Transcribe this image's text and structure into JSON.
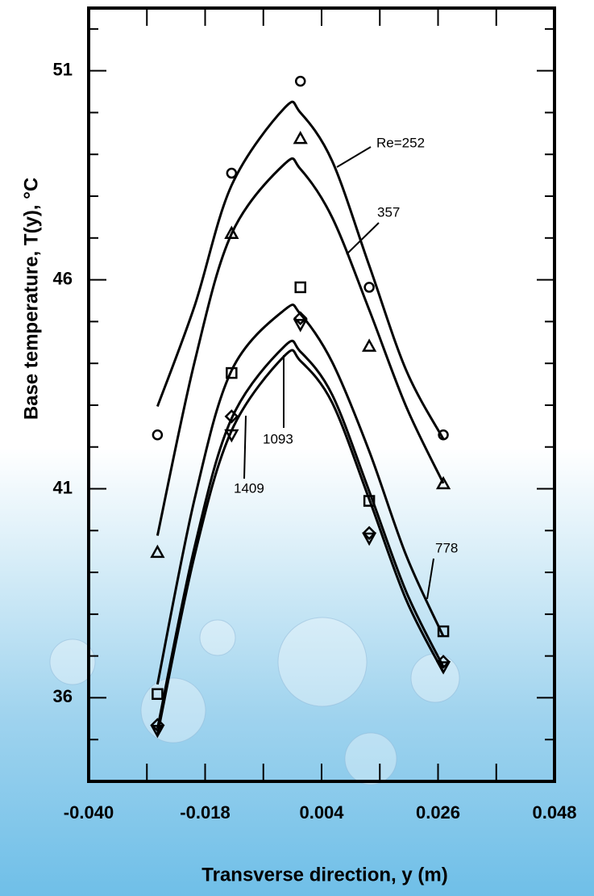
{
  "chart_data": {
    "type": "scatter",
    "x_label": "Transverse direction, y (m)",
    "y_label": "Base temperature, T(y), °C",
    "x": [
      -0.027,
      -0.013,
      0,
      0.013,
      0.027
    ],
    "curve_x": [
      -0.027,
      -0.02,
      -0.013,
      -0.003,
      0,
      0.006,
      0.013,
      0.02,
      0.027
    ],
    "series": [
      {
        "name": "Re=252",
        "marker": "circle",
        "color": "#000000",
        "values": [
          42.29,
          48.55,
          50.75,
          45.82,
          42.29
        ],
        "curve_values": [
          42.97,
          45.37,
          48.26,
          50.11,
          50.0,
          48.84,
          46.34,
          43.83,
          42.19
        ]
      },
      {
        "name": "357",
        "marker": "triangle",
        "color": "#000000",
        "values": [
          39.48,
          47.11,
          49.38,
          44.41,
          41.12
        ],
        "curve_values": [
          39.88,
          44.03,
          47.1,
          48.77,
          48.65,
          47.49,
          45.28,
          42.96,
          41.13
        ]
      },
      {
        "name": "778",
        "marker": "square",
        "color": "#000000",
        "values": [
          36.09,
          43.77,
          45.82,
          40.71,
          37.59
        ],
        "curve_values": [
          36.32,
          40.75,
          43.83,
          45.28,
          45.18,
          44.03,
          41.9,
          39.4,
          37.47
        ]
      },
      {
        "name": "1093",
        "marker": "diamond",
        "color": "#000000",
        "values": [
          35.35,
          42.73,
          45.08,
          39.94,
          36.86
        ],
        "curve_values": [
          35.26,
          39.6,
          42.68,
          44.41,
          44.28,
          43.25,
          40.94,
          38.53,
          36.74
        ]
      },
      {
        "name": "1409",
        "marker": "inverted-triangle",
        "color": "#000000",
        "values": [
          35.22,
          42.29,
          44.93,
          39.82,
          36.74
        ],
        "curve_values": [
          35.12,
          39.4,
          42.39,
          44.18,
          44.06,
          43.06,
          40.75,
          38.34,
          36.61
        ]
      }
    ],
    "xlim": [
      -0.04,
      0.048
    ],
    "ylim": [
      34,
      52.5
    ],
    "xticks": [
      {
        "value": -0.04,
        "label": "-0.040"
      },
      {
        "value": -0.018,
        "label": "-0.018"
      },
      {
        "value": 0.004,
        "label": "0.004"
      },
      {
        "value": 0.026,
        "label": "0.026"
      },
      {
        "value": 0.048,
        "label": "0.048"
      }
    ],
    "xminor_ticks": [
      -0.029,
      -0.007,
      0.015,
      0.037
    ],
    "yticks": [
      36,
      41,
      46,
      51
    ],
    "yminor_ticks": [
      35,
      37,
      38,
      39,
      40,
      42,
      43,
      44,
      45,
      47,
      48,
      49,
      50,
      52
    ],
    "grid": false
  }
}
